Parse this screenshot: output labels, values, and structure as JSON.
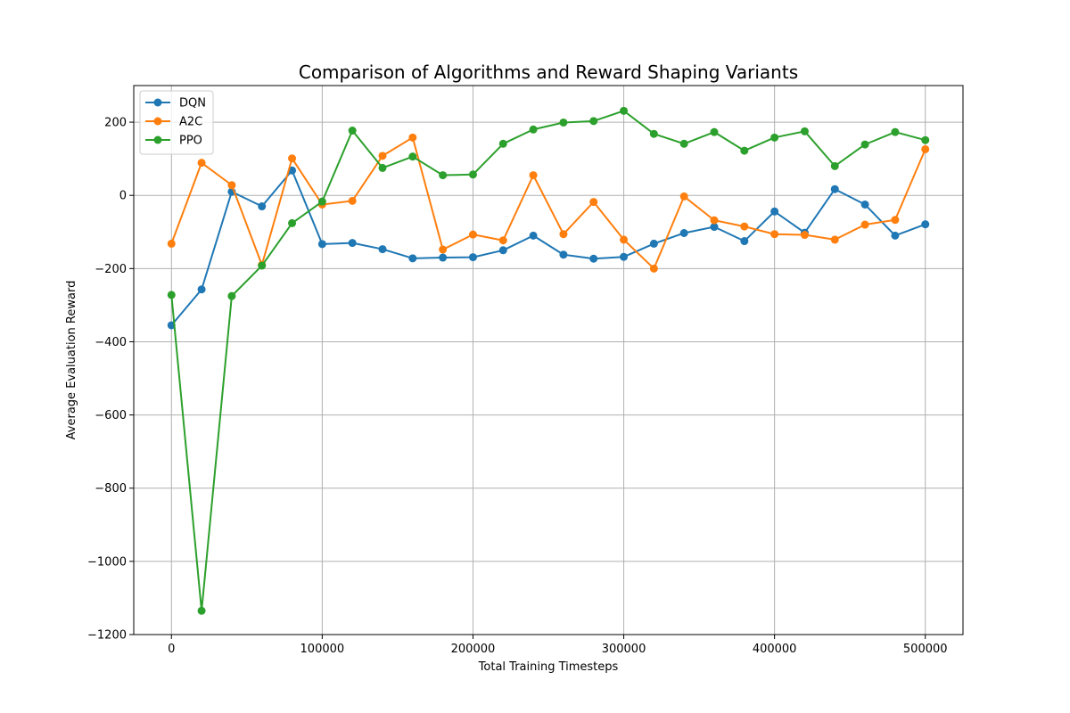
{
  "chart_data": {
    "type": "line",
    "title": "Comparison of Algorithms and Reward Shaping Variants",
    "xlabel": "Total Training Timesteps",
    "ylabel": "Average Evaluation Reward",
    "xlim": [
      -25000,
      525000
    ],
    "ylim": [
      -1200,
      300
    ],
    "xticks": [
      0,
      100000,
      200000,
      300000,
      400000,
      500000
    ],
    "yticks": [
      -1200,
      -1000,
      -800,
      -600,
      -400,
      -200,
      0,
      200
    ],
    "grid": true,
    "legend_position": "top-left",
    "x": [
      0,
      20000,
      40000,
      60000,
      80000,
      100000,
      120000,
      140000,
      160000,
      180000,
      200000,
      220000,
      240000,
      260000,
      280000,
      300000,
      320000,
      340000,
      360000,
      380000,
      400000,
      420000,
      440000,
      460000,
      480000,
      500000
    ],
    "series": [
      {
        "name": "DQN",
        "color": "#1f77b4",
        "values": [
          -355,
          -257,
          10,
          -30,
          68,
          -133,
          -130,
          -147,
          -172,
          -170,
          -169,
          -150,
          -110,
          -162,
          -173,
          -168,
          -132,
          -103,
          -86,
          -125,
          -44,
          -102,
          17,
          -25,
          -110,
          -79
        ]
      },
      {
        "name": "A2C",
        "color": "#ff7f0e",
        "values": [
          -132,
          89,
          28,
          -190,
          101,
          -25,
          -15,
          108,
          158,
          -148,
          -107,
          -123,
          55,
          -106,
          -18,
          -121,
          -200,
          -3,
          -68,
          -85,
          -106,
          -108,
          -121,
          -80,
          -67,
          126
        ]
      },
      {
        "name": "PPO",
        "color": "#2ca02c",
        "values": [
          -272,
          -1135,
          -275,
          -192,
          -76,
          -17,
          177,
          75,
          106,
          55,
          57,
          141,
          180,
          199,
          203,
          231,
          168,
          141,
          173,
          122,
          158,
          175,
          80,
          139,
          173,
          151
        ]
      }
    ]
  }
}
